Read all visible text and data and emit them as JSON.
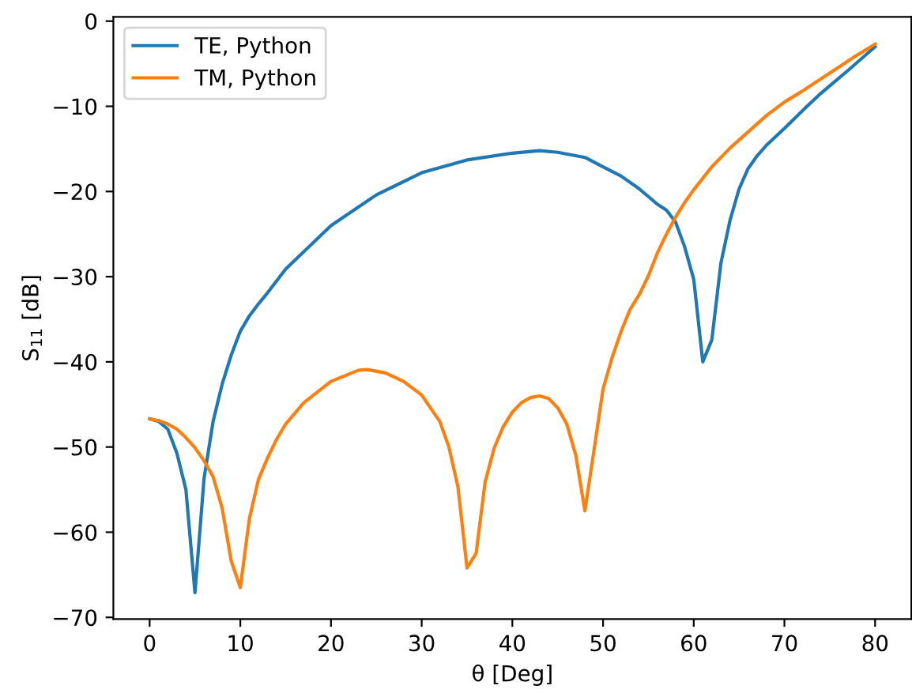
{
  "chart_data": {
    "type": "line",
    "xlabel": "θ [Deg]",
    "ylabel": "S$_{11}$ [dB]",
    "legend": "top left",
    "grid": false,
    "line_style": "solid",
    "marker": "none",
    "xlim": [
      -4,
      84
    ],
    "ylim": [
      -70.2,
      0.5
    ],
    "xticks": [
      0,
      10,
      20,
      30,
      40,
      50,
      60,
      70,
      80
    ],
    "yticks": [
      -70,
      -60,
      -50,
      -40,
      -30,
      -20,
      -10,
      0
    ],
    "series": [
      {
        "name": "TE, Python",
        "color": "#1f77b4",
        "x": [
          0,
          1,
          2,
          3,
          4,
          5,
          6,
          7,
          8,
          9,
          10,
          11,
          12,
          13,
          15,
          20,
          25,
          30,
          35,
          40,
          43,
          45,
          48,
          50,
          52,
          54,
          55,
          56,
          57,
          58,
          59,
          60,
          61,
          62,
          63,
          64,
          65,
          66,
          67,
          68,
          70,
          72,
          74,
          75,
          77,
          80
        ],
        "values": [
          -46.7,
          -47.0,
          -47.9,
          -50.7,
          -55.0,
          -67.1,
          -53.7,
          -47.0,
          -42.6,
          -39.2,
          -36.4,
          -34.6,
          -33.2,
          -31.9,
          -29.1,
          -24.0,
          -20.4,
          -17.8,
          -16.3,
          -15.5,
          -15.2,
          -15.4,
          -16.0,
          -17.1,
          -18.2,
          -19.7,
          -20.6,
          -21.5,
          -22.2,
          -23.6,
          -26.5,
          -30.3,
          -40.0,
          -37.4,
          -28.4,
          -23.4,
          -19.7,
          -17.3,
          -15.8,
          -14.6,
          -12.6,
          -10.5,
          -8.5,
          -7.6,
          -5.8,
          -3.0
        ]
      },
      {
        "name": "TM, Python",
        "color": "#ff7f0e",
        "x": [
          0,
          1,
          2,
          3,
          4,
          5,
          6,
          7,
          8,
          9,
          10,
          11,
          12,
          13,
          14,
          15,
          17,
          20,
          23,
          24,
          26,
          28,
          30,
          32,
          33,
          34,
          35,
          36,
          37,
          38,
          39,
          40,
          41,
          42,
          43,
          44,
          45,
          46,
          47,
          48,
          49,
          50,
          51,
          52,
          53,
          54,
          55,
          56,
          57,
          58,
          59,
          60,
          62,
          64,
          66,
          68,
          70,
          72,
          75,
          78,
          80
        ],
        "values": [
          -46.7,
          -46.9,
          -47.3,
          -47.9,
          -48.9,
          -50.1,
          -51.6,
          -53.5,
          -57.2,
          -63.4,
          -66.5,
          -58.4,
          -53.8,
          -51.3,
          -49.1,
          -47.3,
          -44.8,
          -42.3,
          -41.0,
          -40.9,
          -41.3,
          -42.3,
          -43.9,
          -47.0,
          -50.0,
          -54.7,
          -64.2,
          -62.5,
          -54.1,
          -50.1,
          -47.6,
          -45.9,
          -44.8,
          -44.2,
          -44.0,
          -44.3,
          -45.4,
          -47.3,
          -51.0,
          -57.5,
          -50.4,
          -43.2,
          -39.5,
          -36.4,
          -33.8,
          -32.1,
          -29.9,
          -27.2,
          -25.0,
          -23.0,
          -21.3,
          -19.8,
          -17.1,
          -14.9,
          -13.0,
          -11.1,
          -9.5,
          -8.2,
          -6.1,
          -4.0,
          -2.7
        ]
      }
    ]
  }
}
